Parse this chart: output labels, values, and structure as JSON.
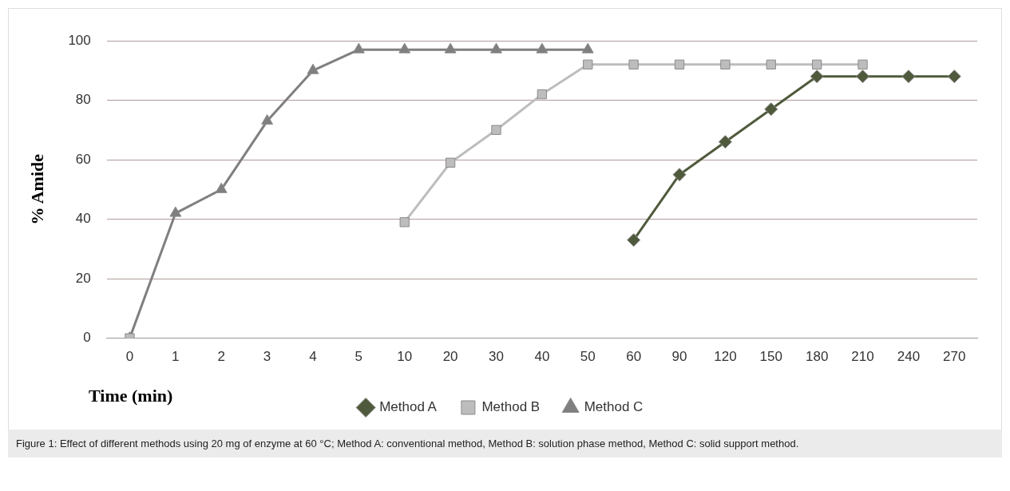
{
  "chart_data": {
    "type": "line",
    "ylabel": "% Amide",
    "xlabel": "Time (min)",
    "categories": [
      "0",
      "1",
      "2",
      "3",
      "4",
      "5",
      "10",
      "20",
      "30",
      "40",
      "50",
      "60",
      "90",
      "120",
      "150",
      "180",
      "210",
      "240",
      "270"
    ],
    "ylim": [
      0,
      100
    ],
    "yticks": [
      0,
      20,
      40,
      60,
      80,
      100
    ],
    "grid": "y",
    "legend": "bottom",
    "line_style": "solid",
    "series": [
      {
        "name": "Method A",
        "color": "#4f5a3c",
        "marker": "diamond",
        "values": [
          null,
          null,
          null,
          null,
          null,
          null,
          null,
          null,
          null,
          null,
          null,
          33,
          55,
          66,
          77,
          88,
          88,
          88,
          88
        ]
      },
      {
        "name": "Method B",
        "color": "#bdbdbd",
        "marker": "square",
        "values": [
          0,
          null,
          null,
          null,
          null,
          null,
          39,
          59,
          70,
          82,
          92,
          92,
          92,
          92,
          92,
          92,
          92,
          null,
          null
        ]
      },
      {
        "name": "Method C",
        "color": "#7f7f7f",
        "marker": "triangle",
        "values": [
          0,
          42,
          50,
          73,
          90,
          97,
          97,
          97,
          97,
          97,
          97,
          null,
          null,
          null,
          null,
          null,
          null,
          null,
          null
        ]
      }
    ],
    "annotations": [
      "Figure 1: Effect of different methods using 20 mg of enzyme at 60 °C; Method A: conventional method, Method B: solution phase method, Method C: solid support method."
    ]
  }
}
